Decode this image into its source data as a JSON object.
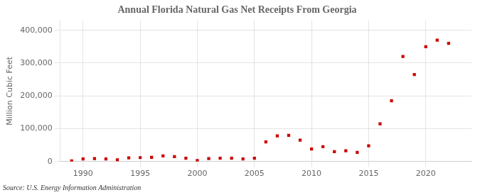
{
  "chart_data": {
    "type": "scatter",
    "title": "Annual Florida Natural Gas Net Receipts From Georgia",
    "y_label": "Million Cubic Feet",
    "source": "Source: U.S. Energy Information Administration",
    "x": [
      1989,
      1990,
      1991,
      1992,
      1993,
      1994,
      1995,
      1996,
      1997,
      1998,
      1999,
      2000,
      2001,
      2002,
      2003,
      2004,
      2005,
      2006,
      2007,
      2008,
      2009,
      2010,
      2011,
      2012,
      2013,
      2014,
      2015,
      2016,
      2017,
      2018,
      2019,
      2020,
      2021,
      2022
    ],
    "values": [
      2000,
      8000,
      9000,
      8000,
      5000,
      11000,
      12000,
      13000,
      17000,
      15000,
      10000,
      3000,
      9000,
      10000,
      10000,
      8000,
      10000,
      60000,
      78000,
      80000,
      65000,
      38000,
      45000,
      30000,
      33000,
      28000,
      48000,
      115000,
      185000,
      320000,
      265000,
      350000,
      370000,
      360000
    ],
    "color": "#cc0000",
    "marker": "square",
    "xlim": [
      1988.0,
      2024.0
    ],
    "xticks": [
      1990,
      1995,
      2000,
      2005,
      2010,
      2015,
      2020
    ],
    "ylim": [
      0,
      430000
    ],
    "yticks": [
      0,
      {
        "value": 100000,
        "label": "100,000"
      },
      {
        "value": 200000,
        "label": "200,000"
      },
      {
        "value": 300000,
        "label": "300,000"
      },
      {
        "value": 400000,
        "label": "400,000"
      }
    ],
    "grid": true
  }
}
